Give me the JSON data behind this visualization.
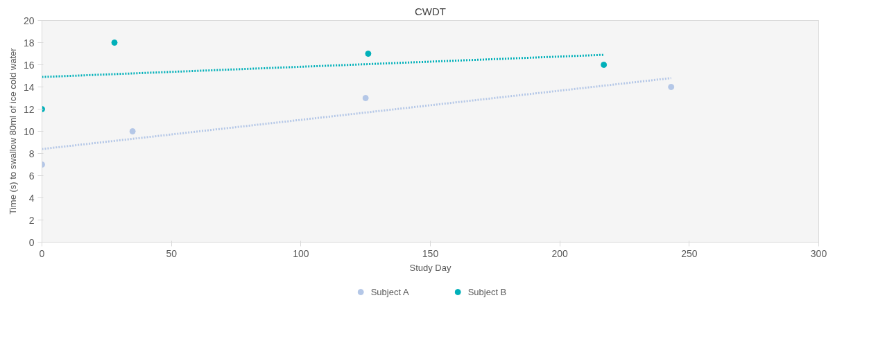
{
  "chart_data": {
    "type": "scatter",
    "title": "CWDT",
    "xlabel": "Study Day",
    "ylabel": "Time (s) to swallow 80ml of ice cold water",
    "xlim": [
      0,
      300
    ],
    "xticks": [
      0,
      50,
      100,
      150,
      200,
      250,
      300
    ],
    "ylim": [
      0,
      20
    ],
    "yticks": [
      0,
      2,
      4,
      6,
      8,
      10,
      12,
      14,
      16,
      18,
      20
    ],
    "grid": false,
    "legend": "bottom",
    "marker": "circle",
    "series": [
      {
        "name": "Subject A",
        "color": "#b4c7e7",
        "x": [
          0,
          35,
          125,
          243
        ],
        "values": [
          7,
          10,
          13,
          14
        ]
      },
      {
        "name": "Subject B",
        "color": "#00b0b9",
        "x": [
          0,
          28,
          126,
          217
        ],
        "values": [
          12,
          18,
          17,
          16
        ]
      },
      {
        "type": "line",
        "marker": "none",
        "line_style": "dotted",
        "color": "#b4c7e7",
        "x": [
          0,
          243
        ],
        "values": [
          8.4,
          14.8
        ]
      },
      {
        "type": "line",
        "marker": "none",
        "line_style": "dotted",
        "color": "#00b0b9",
        "x": [
          0,
          217
        ],
        "values": [
          14.9,
          16.9
        ]
      }
    ]
  }
}
